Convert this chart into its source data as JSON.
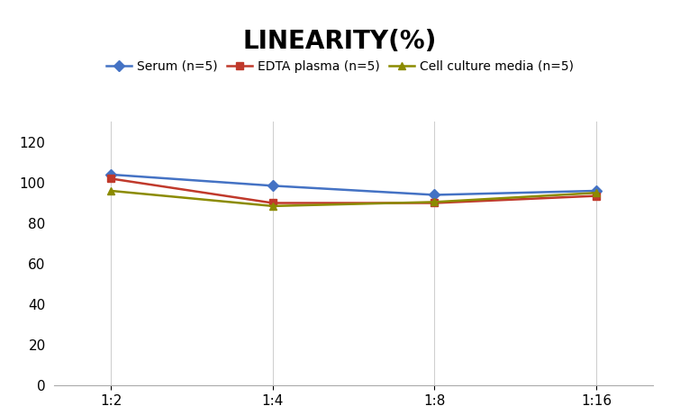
{
  "title": "LINEARITY(%)",
  "title_fontsize": 20,
  "title_fontweight": "bold",
  "x_labels": [
    "1:2",
    "1:4",
    "1:8",
    "1:16"
  ],
  "x_values": [
    0,
    1,
    2,
    3
  ],
  "series": [
    {
      "name": "Serum (n=5)",
      "values": [
        104,
        98.5,
        94,
        96
      ],
      "color": "#4472C4",
      "marker": "D",
      "markersize": 6,
      "linewidth": 1.8
    },
    {
      "name": "EDTA plasma (n=5)",
      "values": [
        102,
        90,
        90,
        93.5
      ],
      "color": "#C0392B",
      "marker": "s",
      "markersize": 6,
      "linewidth": 1.8
    },
    {
      "name": "Cell culture media (n=5)",
      "values": [
        96,
        88.5,
        90.5,
        95
      ],
      "color": "#8B8B00",
      "marker": "^",
      "markersize": 6,
      "linewidth": 1.8
    }
  ],
  "ylim": [
    0,
    130
  ],
  "yticks": [
    0,
    20,
    40,
    60,
    80,
    100,
    120
  ],
  "grid_color": "#D0D0D0",
  "background_color": "#FFFFFF",
  "legend_fontsize": 10,
  "axis_fontsize": 11,
  "xlim": [
    -0.35,
    3.35
  ]
}
